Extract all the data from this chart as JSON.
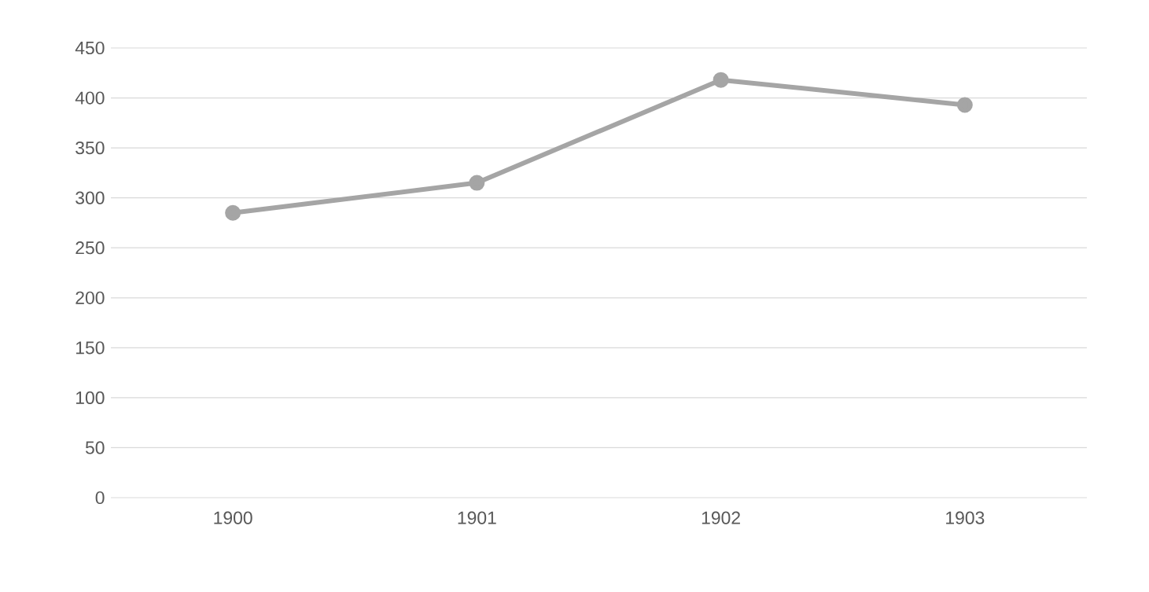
{
  "chart_data": {
    "type": "line",
    "categories": [
      "1900",
      "1901",
      "1902",
      "1903"
    ],
    "series": [
      {
        "color": "#a5a5a5",
        "values": [
          285,
          315,
          418,
          393
        ]
      }
    ],
    "ylim": [
      0,
      450
    ],
    "yticks": [
      0,
      50,
      100,
      150,
      200,
      250,
      300,
      350,
      400,
      450
    ],
    "grid": "y",
    "marker": "circle",
    "line_style": "solid"
  }
}
